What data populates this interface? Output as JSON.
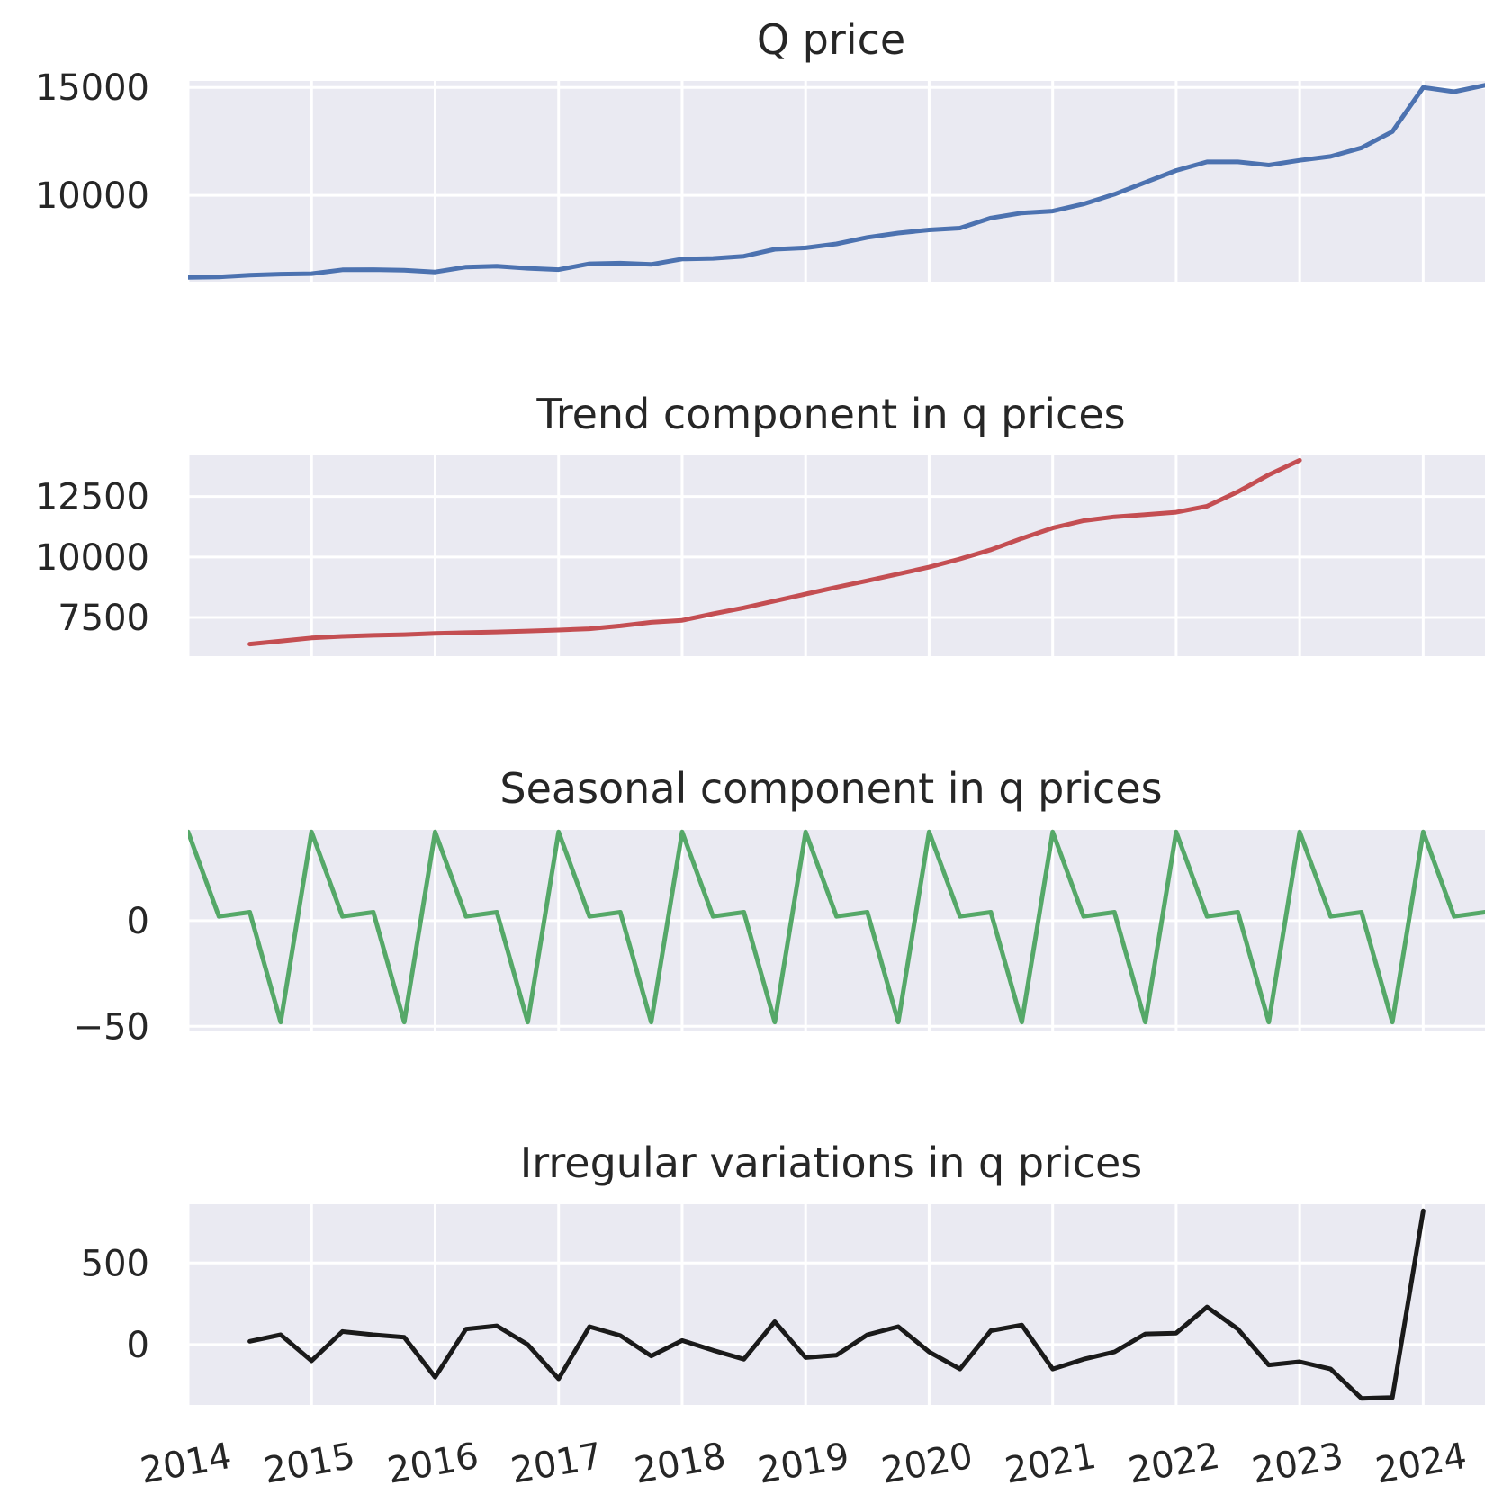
{
  "chart_data": [
    {
      "type": "line",
      "title": "Q price",
      "color": "#4c72b0",
      "x_start": 2014.0,
      "x_step": 0.25,
      "xlim": [
        2014.0,
        2024.5
      ],
      "ylim": [
        6000,
        15300
      ],
      "yticks": [
        10000,
        15000
      ],
      "ytick_labels": [
        "10000",
        "15000"
      ],
      "values": [
        6200,
        6220,
        6300,
        6350,
        6370,
        6550,
        6560,
        6530,
        6450,
        6680,
        6720,
        6620,
        6560,
        6830,
        6860,
        6800,
        7050,
        7080,
        7180,
        7500,
        7570,
        7750,
        8050,
        8250,
        8400,
        8480,
        8950,
        9180,
        9270,
        9600,
        10050,
        10600,
        11150,
        11550,
        11550,
        11400,
        11620,
        11800,
        12200,
        12950,
        15000,
        14800,
        15100
      ]
    },
    {
      "type": "line",
      "title": "Trend component in q prices",
      "color": "#c44e52",
      "x_start": 2014.5,
      "x_step": 0.25,
      "xlim": [
        2014.0,
        2024.5
      ],
      "ylim": [
        5900,
        14200
      ],
      "yticks": [
        7500,
        10000,
        12500
      ],
      "ytick_labels": [
        "7500",
        "10000",
        "12500"
      ],
      "values": [
        6400,
        6520,
        6650,
        6720,
        6760,
        6790,
        6840,
        6870,
        6900,
        6940,
        6980,
        7030,
        7150,
        7300,
        7380,
        7650,
        7900,
        8180,
        8470,
        8750,
        9020,
        9300,
        9580,
        9920,
        10300,
        10770,
        11200,
        11500,
        11660,
        11750,
        11850,
        12100,
        12700,
        13400,
        14000
      ]
    },
    {
      "type": "line",
      "title": "Seasonal component in q prices",
      "color": "#55a868",
      "x_start": 2014.0,
      "x_step": 0.25,
      "xlim": [
        2014.0,
        2024.5
      ],
      "ylim": [
        -52,
        43
      ],
      "yticks": [
        -50,
        0
      ],
      "ytick_labels": [
        "−50",
        "0"
      ],
      "values": [
        42,
        2,
        4,
        -48,
        42,
        2,
        4,
        -48,
        42,
        2,
        4,
        -48,
        42,
        2,
        4,
        -48,
        42,
        2,
        4,
        -48,
        42,
        2,
        4,
        -48,
        42,
        2,
        4,
        -48,
        42,
        2,
        4,
        -48,
        42,
        2,
        4,
        -48,
        42,
        2,
        4,
        -48,
        42,
        2,
        4
      ]
    },
    {
      "type": "line",
      "title": "Irregular variations in q prices",
      "color": "#1a1a1a",
      "x_start": 2014.5,
      "x_step": 0.25,
      "xlim": [
        2014.0,
        2024.5
      ],
      "ylim": [
        -370,
        860
      ],
      "yticks": [
        0,
        500
      ],
      "ytick_labels": [
        "0",
        "500"
      ],
      "values": [
        20,
        60,
        -100,
        80,
        60,
        45,
        -200,
        95,
        115,
        0,
        -210,
        110,
        55,
        -70,
        25,
        -35,
        -90,
        140,
        -80,
        -65,
        60,
        110,
        -45,
        -150,
        85,
        120,
        -150,
        -90,
        -45,
        65,
        70,
        230,
        95,
        -125,
        -105,
        -150,
        -330,
        -325,
        820
      ]
    }
  ],
  "x_axis": {
    "tick_values": [
      2014,
      2015,
      2016,
      2017,
      2018,
      2019,
      2020,
      2021,
      2022,
      2023,
      2024
    ],
    "tick_labels": [
      "2014",
      "2015",
      "2016",
      "2017",
      "2018",
      "2019",
      "2020",
      "2021",
      "2022",
      "2023",
      "2024"
    ]
  }
}
